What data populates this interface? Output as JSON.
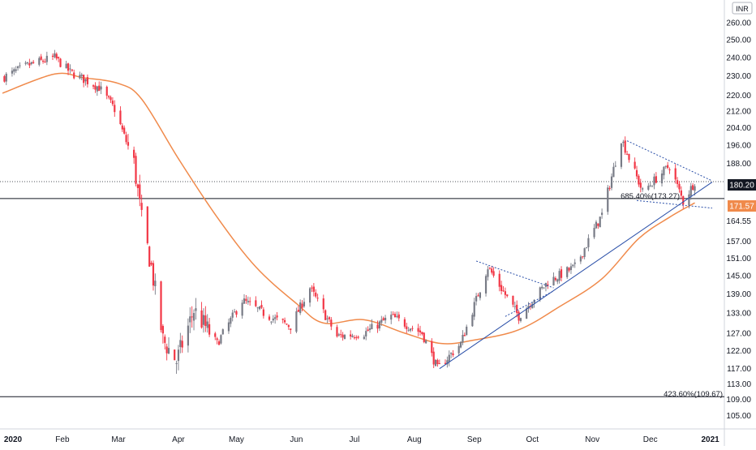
{
  "chart_data": {
    "type": "candlestick",
    "currency_badge": "INR",
    "grid": false,
    "colors": {
      "up": "#787b86",
      "down": "#f23645",
      "moving_average": "#f08a4b",
      "trendline": "#2a4fa8",
      "dotted_channel": "#2a4fa8",
      "last_price_badge": "#131722",
      "ma_price_badge": "#f08a4b"
    },
    "y_axis": {
      "ticks": [
        "260.00",
        "250.00",
        "240.00",
        "230.00",
        "220.00",
        "212.00",
        "204.00",
        "196.00",
        "188.00",
        "180.20",
        "171.57",
        "164.55",
        "157.00",
        "151.00",
        "145.00",
        "139.00",
        "133.00",
        "127.00",
        "122.00",
        "117.00",
        "113.00",
        "109.00",
        "105.00"
      ],
      "scale": "log",
      "range": [
        102,
        272
      ]
    },
    "x_axis": {
      "ticks": [
        "2020",
        "Feb",
        "Mar",
        "Apr",
        "May",
        "Jun",
        "Jul",
        "Aug",
        "Sep",
        "Oct",
        "Nov",
        "Dec",
        "2021"
      ]
    },
    "price_labels": {
      "last_price": "180.20",
      "ma_price": "171.57"
    },
    "annotations": {
      "fib_685": "685.40%(173.27)",
      "fib_423": "423.60%(109.67)"
    },
    "series": [
      {
        "kind": "close",
        "x": [
          "2020-01-01",
          "2020-01-15",
          "2020-01-28",
          "2020-02-05",
          "2020-02-20",
          "2020-02-28",
          "2020-03-09",
          "2020-03-13",
          "2020-03-18",
          "2020-03-24",
          "2020-03-31",
          "2020-04-09",
          "2020-04-21",
          "2020-05-04",
          "2020-05-18",
          "2020-05-29",
          "2020-06-08",
          "2020-06-22",
          "2020-07-06",
          "2020-07-20",
          "2020-08-05",
          "2020-08-13",
          "2020-08-25",
          "2020-09-08",
          "2020-09-24",
          "2020-10-09",
          "2020-10-23",
          "2020-11-06",
          "2020-11-16",
          "2020-11-27",
          "2020-12-11",
          "2020-12-18",
          "2020-12-24"
        ],
        "y": [
          229,
          236,
          240,
          232,
          224,
          213,
          188,
          165,
          148,
          125,
          119,
          134,
          124,
          137,
          132,
          129,
          141,
          126,
          127,
          132,
          127,
          117,
          124,
          148,
          132,
          143,
          148,
          167,
          199,
          176,
          187,
          172,
          180.2
        ]
      },
      {
        "kind": "moving_average",
        "x": [
          "2020-01-01",
          "2020-01-28",
          "2020-02-12",
          "2020-03-01",
          "2020-03-13",
          "2020-04-01",
          "2020-04-21",
          "2020-05-11",
          "2020-06-01",
          "2020-06-15",
          "2020-07-06",
          "2020-07-27",
          "2020-08-15",
          "2020-09-01",
          "2020-09-24",
          "2020-10-15",
          "2020-11-06",
          "2020-11-25",
          "2020-12-11",
          "2020-12-24"
        ],
        "y": [
          221,
          231,
          229,
          226,
          218,
          190,
          166,
          148,
          136,
          130,
          131,
          127,
          124,
          125,
          128,
          135,
          144,
          158,
          166,
          171.57
        ]
      }
    ],
    "horizontal_lines": [
      {
        "name": "last-price",
        "y": 180.2,
        "style": "dotted"
      },
      {
        "name": "fib-685",
        "y": 173.27,
        "style": "solid"
      },
      {
        "name": "fib-423",
        "y": 109.67,
        "style": "solid"
      }
    ],
    "trendlines": [
      {
        "name": "rising-trendline",
        "x": [
          "2020-08-14",
          "2021-01-02"
        ],
        "y": [
          117,
          180
        ],
        "style": "solid"
      },
      {
        "name": "sep-upper",
        "x": [
          "2020-09-02",
          "2020-10-12"
        ],
        "y": [
          150,
          141
        ],
        "style": "dotted"
      },
      {
        "name": "sep-lower",
        "x": [
          "2020-09-17",
          "2020-10-12"
        ],
        "y": [
          132,
          140
        ],
        "style": "dotted"
      },
      {
        "name": "triangle-upper",
        "x": [
          "2020-11-19",
          "2021-01-02"
        ],
        "y": [
          198,
          180.5
        ],
        "style": "dotted"
      },
      {
        "name": "triangle-lower",
        "x": [
          "2020-11-24",
          "2021-01-02"
        ],
        "y": [
          172.5,
          169.5
        ],
        "style": "dotted"
      }
    ]
  }
}
